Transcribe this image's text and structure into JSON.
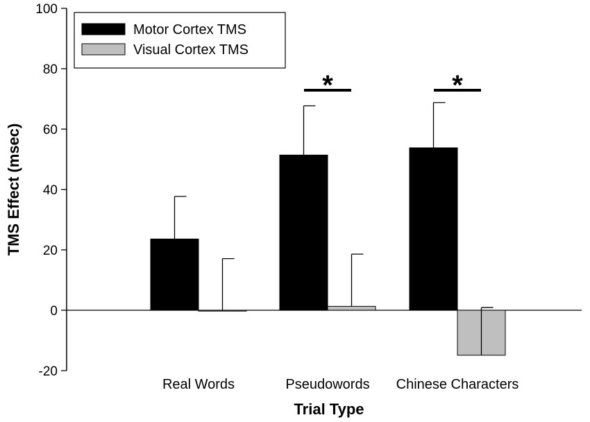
{
  "chart_data": {
    "type": "bar",
    "xlabel": "Trial Type",
    "ylabel": "TMS Effect (msec)",
    "ylim": [
      -20,
      100
    ],
    "yticks": [
      -20,
      0,
      20,
      40,
      60,
      80,
      100
    ],
    "categories": [
      "Real Words",
      "Pseudowords",
      "Chinese Characters"
    ],
    "series": [
      {
        "name": "Motor Cortex TMS",
        "color": "#000000",
        "values": [
          23.6,
          51.4,
          53.8
        ],
        "errors": [
          14.1,
          16.3,
          15.0
        ]
      },
      {
        "name": "Visual Cortex TMS",
        "color": "#bfbfbf",
        "values": [
          -0.2,
          1.3,
          -14.9
        ],
        "errors": [
          17.3,
          17.3,
          15.8
        ]
      }
    ],
    "legend_position": "top-left",
    "significance": [
      {
        "category": "Pseudowords",
        "label": "*"
      },
      {
        "category": "Chinese Characters",
        "label": "*"
      }
    ]
  }
}
